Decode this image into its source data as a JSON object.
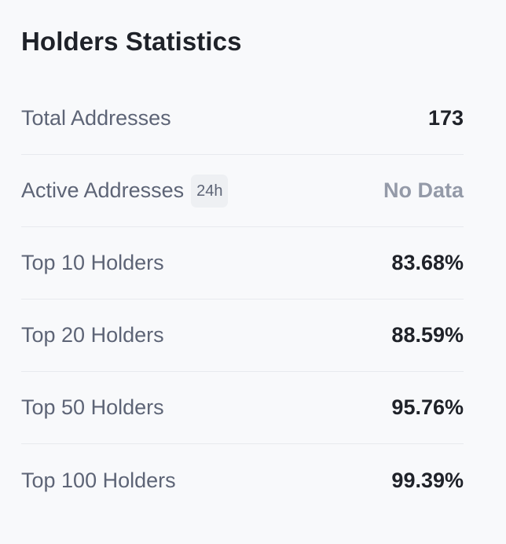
{
  "card": {
    "title": "Holders Statistics"
  },
  "stats": [
    {
      "label": "Total Addresses",
      "value": "173"
    },
    {
      "label": "Active Addresses",
      "badge": "24h",
      "value": "No Data"
    },
    {
      "label": "Top 10 Holders",
      "value": "83.68%"
    },
    {
      "label": "Top 20 Holders",
      "value": "88.59%"
    },
    {
      "label": "Top 50 Holders",
      "value": "95.76%"
    },
    {
      "label": "Top 100 Holders",
      "value": "99.39%"
    }
  ],
  "colors": {
    "title": "#1f2229",
    "label": "#5d6476",
    "value": "#1f2229",
    "muted_value": "#949aa8",
    "card_background": "#f8f9fb",
    "divider": "#e8eaee"
  }
}
